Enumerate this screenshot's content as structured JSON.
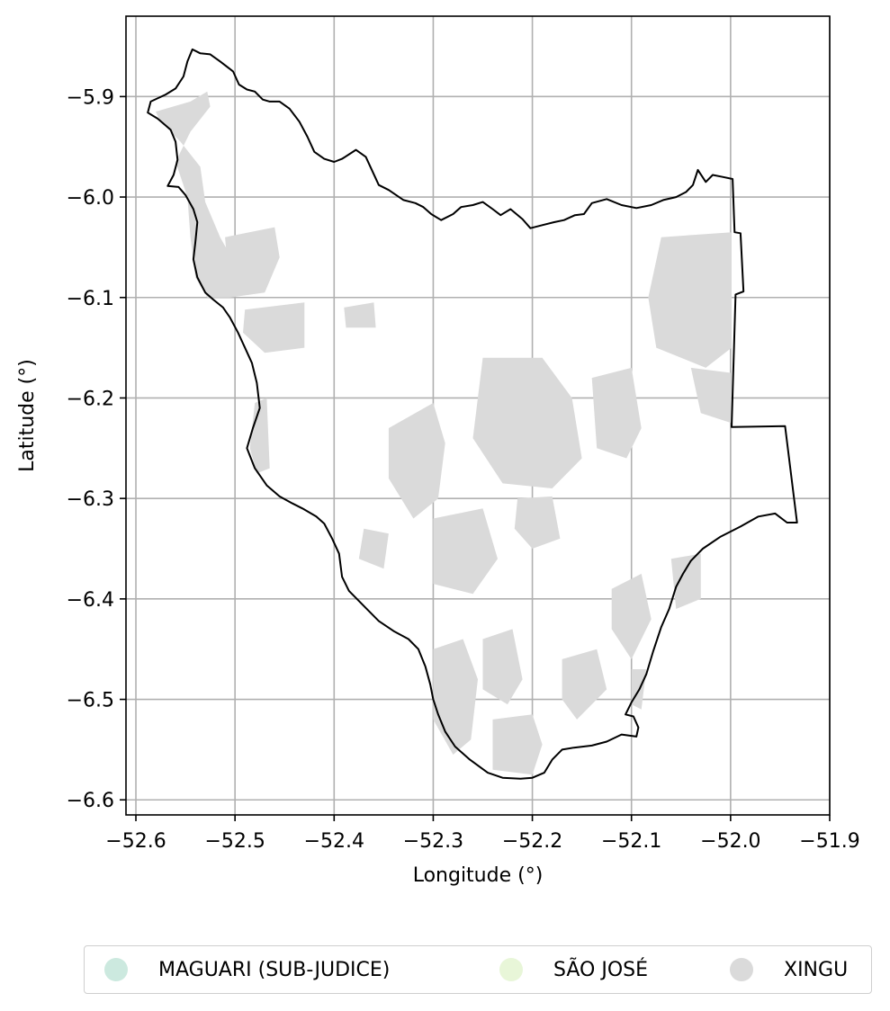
{
  "chart_data": {
    "type": "map",
    "xlabel": "Longitude (°)",
    "ylabel": "Latitude (°)",
    "xlim": [
      -52.61,
      -51.9
    ],
    "ylim": [
      -6.615,
      -5.82
    ],
    "x_ticks": [
      -52.6,
      -52.5,
      -52.4,
      -52.3,
      -52.2,
      -52.1,
      -52.0,
      -51.9
    ],
    "y_ticks": [
      -5.9,
      -6.0,
      -6.1,
      -6.2,
      -6.3,
      -6.4,
      -6.5,
      -6.6
    ],
    "x_tick_labels": [
      "−52.6",
      "−52.5",
      "−52.4",
      "−52.3",
      "−52.2",
      "−52.1",
      "−52.0",
      "−51.9"
    ],
    "y_tick_labels": [
      "−5.9",
      "−6.0",
      "−6.1",
      "−6.2",
      "−6.3",
      "−6.4",
      "−6.5",
      "−6.6"
    ],
    "grid": true,
    "legend_placement": "below",
    "boundary_color": "#000000",
    "boundary": [
      [
        -52.543,
        -5.853
      ],
      [
        -52.535,
        -5.857
      ],
      [
        -52.525,
        -5.858
      ],
      [
        -52.515,
        -5.865
      ],
      [
        -52.502,
        -5.875
      ],
      [
        -52.496,
        -5.888
      ],
      [
        -52.488,
        -5.893
      ],
      [
        -52.48,
        -5.895
      ],
      [
        -52.472,
        -5.903
      ],
      [
        -52.465,
        -5.905
      ],
      [
        -52.455,
        -5.905
      ],
      [
        -52.445,
        -5.912
      ],
      [
        -52.435,
        -5.925
      ],
      [
        -52.427,
        -5.94
      ],
      [
        -52.42,
        -5.955
      ],
      [
        -52.41,
        -5.962
      ],
      [
        -52.4,
        -5.965
      ],
      [
        -52.392,
        -5.962
      ],
      [
        -52.378,
        -5.953
      ],
      [
        -52.368,
        -5.96
      ],
      [
        -52.355,
        -5.988
      ],
      [
        -52.345,
        -5.993
      ],
      [
        -52.33,
        -6.003
      ],
      [
        -52.318,
        -6.006
      ],
      [
        -52.31,
        -6.01
      ],
      [
        -52.302,
        -6.017
      ],
      [
        -52.292,
        -6.023
      ],
      [
        -52.28,
        -6.017
      ],
      [
        -52.272,
        -6.01
      ],
      [
        -52.26,
        -6.008
      ],
      [
        -52.25,
        -6.005
      ],
      [
        -52.24,
        -6.012
      ],
      [
        -52.232,
        -6.018
      ],
      [
        -52.222,
        -6.012
      ],
      [
        -52.21,
        -6.022
      ],
      [
        -52.202,
        -6.031
      ],
      [
        -52.19,
        -6.028
      ],
      [
        -52.178,
        -6.025
      ],
      [
        -52.168,
        -6.023
      ],
      [
        -52.157,
        -6.018
      ],
      [
        -52.148,
        -6.017
      ],
      [
        -52.14,
        -6.006
      ],
      [
        -52.125,
        -6.002
      ],
      [
        -52.11,
        -6.008
      ],
      [
        -52.095,
        -6.011
      ],
      [
        -52.08,
        -6.008
      ],
      [
        -52.068,
        -6.003
      ],
      [
        -52.055,
        -6.0
      ],
      [
        -52.045,
        -5.995
      ],
      [
        -52.038,
        -5.988
      ],
      [
        -52.033,
        -5.973
      ],
      [
        -52.025,
        -5.985
      ],
      [
        -52.018,
        -5.978
      ],
      [
        -52.008,
        -5.98
      ],
      [
        -51.998,
        -5.982
      ],
      [
        -51.996,
        -6.035
      ],
      [
        -51.99,
        -6.036
      ],
      [
        -51.987,
        -6.094
      ],
      [
        -51.995,
        -6.097
      ],
      [
        -51.999,
        -6.229
      ],
      [
        -51.945,
        -6.228
      ],
      [
        -51.933,
        -6.324
      ],
      [
        -51.943,
        -6.324
      ],
      [
        -51.955,
        -6.315
      ],
      [
        -51.972,
        -6.318
      ],
      [
        -51.99,
        -6.328
      ],
      [
        -52.01,
        -6.338
      ],
      [
        -52.028,
        -6.35
      ],
      [
        -52.04,
        -6.362
      ],
      [
        -52.048,
        -6.375
      ],
      [
        -52.055,
        -6.388
      ],
      [
        -52.062,
        -6.41
      ],
      [
        -52.07,
        -6.428
      ],
      [
        -52.078,
        -6.452
      ],
      [
        -52.085,
        -6.475
      ],
      [
        -52.092,
        -6.49
      ],
      [
        -52.1,
        -6.503
      ],
      [
        -52.106,
        -6.515
      ],
      [
        -52.098,
        -6.517
      ],
      [
        -52.093,
        -6.528
      ],
      [
        -52.095,
        -6.537
      ],
      [
        -52.11,
        -6.535
      ],
      [
        -52.125,
        -6.542
      ],
      [
        -52.14,
        -6.546
      ],
      [
        -52.158,
        -6.548
      ],
      [
        -52.17,
        -6.55
      ],
      [
        -52.18,
        -6.56
      ],
      [
        -52.188,
        -6.573
      ],
      [
        -52.2,
        -6.578
      ],
      [
        -52.212,
        -6.579
      ],
      [
        -52.23,
        -6.578
      ],
      [
        -52.245,
        -6.573
      ],
      [
        -52.263,
        -6.56
      ],
      [
        -52.278,
        -6.547
      ],
      [
        -52.288,
        -6.532
      ],
      [
        -52.295,
        -6.515
      ],
      [
        -52.3,
        -6.5
      ],
      [
        -52.303,
        -6.485
      ],
      [
        -52.308,
        -6.467
      ],
      [
        -52.315,
        -6.45
      ],
      [
        -52.325,
        -6.44
      ],
      [
        -52.34,
        -6.432
      ],
      [
        -52.355,
        -6.422
      ],
      [
        -52.37,
        -6.407
      ],
      [
        -52.385,
        -6.392
      ],
      [
        -52.392,
        -6.378
      ],
      [
        -52.395,
        -6.355
      ],
      [
        -52.402,
        -6.34
      ],
      [
        -52.41,
        -6.325
      ],
      [
        -52.418,
        -6.318
      ],
      [
        -52.432,
        -6.31
      ],
      [
        -52.442,
        -6.305
      ],
      [
        -52.455,
        -6.298
      ],
      [
        -52.468,
        -6.287
      ],
      [
        -52.48,
        -6.27
      ],
      [
        -52.488,
        -6.25
      ],
      [
        -52.482,
        -6.23
      ],
      [
        -52.475,
        -6.21
      ],
      [
        -52.478,
        -6.185
      ],
      [
        -52.483,
        -6.165
      ],
      [
        -52.49,
        -6.15
      ],
      [
        -52.497,
        -6.135
      ],
      [
        -52.505,
        -6.12
      ],
      [
        -52.512,
        -6.11
      ],
      [
        -52.522,
        -6.102
      ],
      [
        -52.53,
        -6.095
      ],
      [
        -52.538,
        -6.08
      ],
      [
        -52.542,
        -6.062
      ],
      [
        -52.54,
        -6.045
      ],
      [
        -52.538,
        -6.025
      ],
      [
        -52.542,
        -6.012
      ],
      [
        -52.55,
        -5.998
      ],
      [
        -52.557,
        -5.99
      ],
      [
        -52.568,
        -5.989
      ],
      [
        -52.562,
        -5.978
      ],
      [
        -52.558,
        -5.963
      ],
      [
        -52.56,
        -5.945
      ],
      [
        -52.565,
        -5.933
      ],
      [
        -52.578,
        -5.922
      ],
      [
        -52.588,
        -5.916
      ],
      [
        -52.585,
        -5.905
      ],
      [
        -52.57,
        -5.898
      ],
      [
        -52.56,
        -5.892
      ],
      [
        -52.552,
        -5.88
      ],
      [
        -52.548,
        -5.865
      ],
      [
        -52.543,
        -5.853
      ]
    ],
    "series": [
      {
        "name": "MAGUARI (SUB-JUDICE)",
        "color": "#cce9df",
        "polygons": []
      },
      {
        "name": "SÃO JOSÉ",
        "color": "#e8f6d8",
        "polygons": []
      },
      {
        "name": "XINGU",
        "color": "#dadada",
        "polygons": [
          [
            [
              -52.58,
              -5.915
            ],
            [
              -52.545,
              -5.905
            ],
            [
              -52.528,
              -5.895
            ],
            [
              -52.525,
              -5.91
            ],
            [
              -52.545,
              -5.935
            ],
            [
              -52.56,
              -5.965
            ],
            [
              -52.548,
              -6.0
            ],
            [
              -52.545,
              -6.04
            ],
            [
              -52.54,
              -6.08
            ],
            [
              -52.528,
              -6.1
            ],
            [
              -52.505,
              -6.1
            ],
            [
              -52.498,
              -6.07
            ],
            [
              -52.515,
              -6.04
            ],
            [
              -52.53,
              -6.005
            ],
            [
              -52.535,
              -5.97
            ],
            [
              -52.555,
              -5.945
            ],
            [
              -52.575,
              -5.925
            ]
          ],
          [
            [
              -52.51,
              -6.04
            ],
            [
              -52.46,
              -6.03
            ],
            [
              -52.455,
              -6.06
            ],
            [
              -52.47,
              -6.095
            ],
            [
              -52.505,
              -6.1
            ]
          ],
          [
            [
              -52.49,
              -6.112
            ],
            [
              -52.43,
              -6.105
            ],
            [
              -52.43,
              -6.15
            ],
            [
              -52.47,
              -6.155
            ],
            [
              -52.492,
              -6.135
            ]
          ],
          [
            [
              -52.48,
              -6.205
            ],
            [
              -52.468,
              -6.2
            ],
            [
              -52.465,
              -6.27
            ],
            [
              -52.478,
              -6.275
            ],
            [
              -52.485,
              -6.25
            ]
          ],
          [
            [
              -52.39,
              -6.11
            ],
            [
              -52.36,
              -6.105
            ],
            [
              -52.358,
              -6.13
            ],
            [
              -52.388,
              -6.13
            ]
          ],
          [
            [
              -52.345,
              -6.23
            ],
            [
              -52.3,
              -6.205
            ],
            [
              -52.288,
              -6.245
            ],
            [
              -52.295,
              -6.3
            ],
            [
              -52.32,
              -6.32
            ],
            [
              -52.345,
              -6.28
            ]
          ],
          [
            [
              -52.25,
              -6.16
            ],
            [
              -52.19,
              -6.16
            ],
            [
              -52.16,
              -6.2
            ],
            [
              -52.15,
              -6.26
            ],
            [
              -52.18,
              -6.29
            ],
            [
              -52.23,
              -6.285
            ],
            [
              -52.26,
              -6.24
            ]
          ],
          [
            [
              -52.14,
              -6.18
            ],
            [
              -52.1,
              -6.17
            ],
            [
              -52.09,
              -6.23
            ],
            [
              -52.105,
              -6.26
            ],
            [
              -52.135,
              -6.25
            ]
          ],
          [
            [
              -52.3,
              -6.32
            ],
            [
              -52.25,
              -6.31
            ],
            [
              -52.235,
              -6.36
            ],
            [
              -52.26,
              -6.395
            ],
            [
              -52.3,
              -6.385
            ]
          ],
          [
            [
              -52.215,
              -6.3
            ],
            [
              -52.18,
              -6.298
            ],
            [
              -52.172,
              -6.34
            ],
            [
              -52.2,
              -6.35
            ],
            [
              -52.218,
              -6.33
            ]
          ],
          [
            [
              -52.37,
              -6.33
            ],
            [
              -52.345,
              -6.335
            ],
            [
              -52.35,
              -6.37
            ],
            [
              -52.375,
              -6.36
            ]
          ],
          [
            [
              -52.07,
              -6.04
            ],
            [
              -51.999,
              -6.035
            ],
            [
              -51.999,
              -6.15
            ],
            [
              -52.025,
              -6.17
            ],
            [
              -52.075,
              -6.15
            ],
            [
              -52.083,
              -6.1
            ]
          ],
          [
            [
              -52.04,
              -6.17
            ],
            [
              -52.0,
              -6.175
            ],
            [
              -51.999,
              -6.225
            ],
            [
              -52.03,
              -6.215
            ]
          ],
          [
            [
              -52.12,
              -6.39
            ],
            [
              -52.09,
              -6.375
            ],
            [
              -52.08,
              -6.42
            ],
            [
              -52.1,
              -6.46
            ],
            [
              -52.12,
              -6.43
            ]
          ],
          [
            [
              -52.3,
              -6.45
            ],
            [
              -52.27,
              -6.44
            ],
            [
              -52.255,
              -6.48
            ],
            [
              -52.262,
              -6.54
            ],
            [
              -52.28,
              -6.555
            ],
            [
              -52.3,
              -6.52
            ]
          ],
          [
            [
              -52.25,
              -6.44
            ],
            [
              -52.22,
              -6.43
            ],
            [
              -52.21,
              -6.48
            ],
            [
              -52.225,
              -6.505
            ],
            [
              -52.25,
              -6.49
            ]
          ],
          [
            [
              -52.24,
              -6.52
            ],
            [
              -52.2,
              -6.515
            ],
            [
              -52.19,
              -6.545
            ],
            [
              -52.2,
              -6.575
            ],
            [
              -52.24,
              -6.57
            ]
          ],
          [
            [
              -52.17,
              -6.46
            ],
            [
              -52.135,
              -6.45
            ],
            [
              -52.125,
              -6.49
            ],
            [
              -52.155,
              -6.52
            ],
            [
              -52.17,
              -6.5
            ]
          ],
          [
            [
              -52.1,
              -6.47
            ],
            [
              -52.085,
              -6.47
            ],
            [
              -52.09,
              -6.51
            ],
            [
              -52.1,
              -6.505
            ]
          ],
          [
            [
              -52.06,
              -6.36
            ],
            [
              -52.03,
              -6.355
            ],
            [
              -52.03,
              -6.4
            ],
            [
              -52.055,
              -6.41
            ]
          ]
        ]
      }
    ],
    "legend": [
      {
        "label": "MAGUARI (SUB-JUDICE)",
        "color": "#cce9df"
      },
      {
        "label": "SÃO JOSÉ",
        "color": "#e8f6d8"
      },
      {
        "label": "XINGU",
        "color": "#dadada"
      }
    ]
  }
}
